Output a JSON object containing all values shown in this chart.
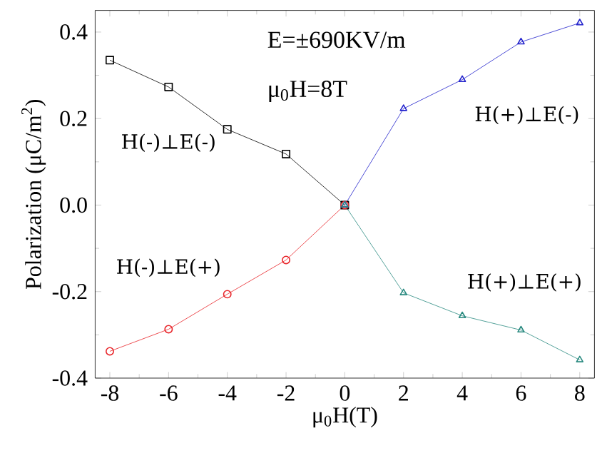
{
  "chart_data": {
    "type": "line",
    "xlabel": "μ$_{0}$H(T)",
    "ylabel": "Polarization (μC/m$^{2}$)",
    "annotations": [
      "E=±690KV/m",
      "μ$_{0}$H=8T"
    ],
    "xlim": [
      -8.5,
      8.5
    ],
    "xticks": [
      -8,
      -6,
      -4,
      -2,
      0,
      2,
      4,
      6,
      8
    ],
    "ylim": [
      -0.4,
      0.45
    ],
    "yticks": [
      -0.4,
      -0.2,
      {
        "value": 0,
        "label": "0.0"
      },
      0.2,
      0.4
    ],
    "grid": false,
    "legend": false,
    "line_style": "solid",
    "series": [
      {
        "name": "H(-)⊥E(-)",
        "color": "#000000",
        "marker": "square",
        "x": [
          -8,
          -6,
          -4,
          -2,
          0
        ],
        "values": [
          0.335,
          0.273,
          0.175,
          0.118,
          0
        ]
      },
      {
        "name": "H(-)⊥E(+)",
        "color": "#e8252a",
        "marker": "circle",
        "x": [
          -8,
          -6,
          -4,
          -2,
          0
        ],
        "values": [
          -0.338,
          -0.287,
          -0.206,
          -0.127,
          0
        ]
      },
      {
        "name": "H(+)⊥E(-)",
        "color": "#2222cc",
        "marker": "triangle",
        "x": [
          0,
          2,
          4,
          6,
          8
        ],
        "values": [
          0,
          0.223,
          0.29,
          0.377,
          0.421
        ]
      },
      {
        "name": "H(+)⊥E(+)",
        "color": "#2a8a80",
        "marker": "triangle-down",
        "x": [
          0,
          2,
          4,
          6,
          8
        ],
        "values": [
          0,
          -0.203,
          -0.256,
          -0.289,
          -0.358
        ]
      }
    ]
  }
}
